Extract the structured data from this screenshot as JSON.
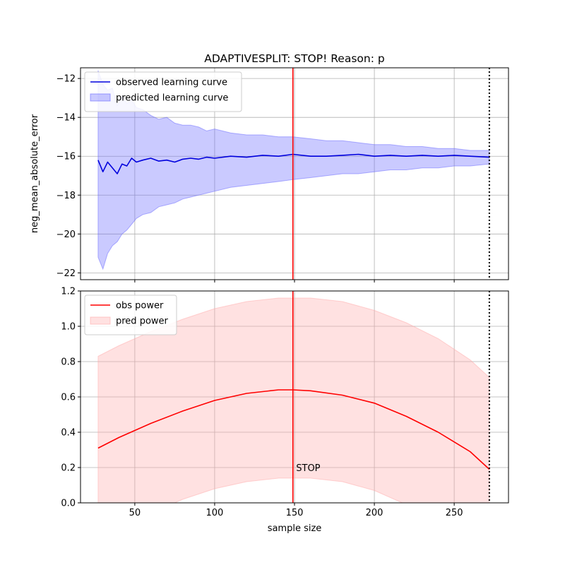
{
  "chart_data": [
    {
      "type": "line",
      "title": "ADAPTIVESPLIT: STOP!  Reason: p",
      "xlabel": "",
      "ylabel": "neg_mean_absolute_error",
      "xlim": [
        16,
        284
      ],
      "ylim": [
        -22.35,
        -11.45
      ],
      "xticks": [
        50,
        100,
        150,
        200,
        250
      ],
      "yticks": [
        -22,
        -20,
        -18,
        -16,
        -14,
        -12
      ],
      "ytick_labels": [
        "−22",
        "−20",
        "−18",
        "−16",
        "−14",
        "−12"
      ],
      "grid": true,
      "legend": "top-left",
      "series": [
        {
          "name": "observed learning curve",
          "color": "#0000dd",
          "x": [
            27,
            30,
            33,
            36,
            39,
            42,
            45,
            48,
            51,
            55,
            60,
            65,
            70,
            75,
            80,
            85,
            90,
            95,
            100,
            110,
            120,
            130,
            140,
            149,
            160,
            170,
            180,
            190,
            200,
            210,
            220,
            230,
            240,
            250,
            260,
            272
          ],
          "y": [
            -16.2,
            -16.8,
            -16.3,
            -16.6,
            -16.9,
            -16.4,
            -16.5,
            -16.1,
            -16.3,
            -16.2,
            -16.1,
            -16.25,
            -16.2,
            -16.3,
            -16.15,
            -16.1,
            -16.15,
            -16.05,
            -16.1,
            -16.0,
            -16.05,
            -15.95,
            -16.0,
            -15.9,
            -16.0,
            -16.0,
            -15.95,
            -15.9,
            -16.0,
            -15.95,
            -16.0,
            -15.95,
            -16.0,
            -15.95,
            -16.0,
            -16.05
          ]
        },
        {
          "name": "predicted learning curve",
          "type": "area",
          "color": "#6666ff",
          "x": [
            27,
            30,
            33,
            36,
            39,
            42,
            45,
            48,
            51,
            55,
            60,
            65,
            70,
            75,
            80,
            85,
            90,
            95,
            100,
            110,
            120,
            130,
            140,
            149,
            160,
            170,
            180,
            190,
            200,
            210,
            220,
            230,
            240,
            250,
            260,
            272
          ],
          "upper": [
            -11.6,
            -12.3,
            -12.6,
            -12.5,
            -13.4,
            -12.9,
            -13.3,
            -13.1,
            -13.5,
            -13.6,
            -13.9,
            -14.1,
            -14.0,
            -14.3,
            -14.4,
            -14.4,
            -14.5,
            -14.7,
            -14.6,
            -14.8,
            -14.9,
            -14.9,
            -15.0,
            -15.0,
            -15.1,
            -15.2,
            -15.2,
            -15.3,
            -15.4,
            -15.4,
            -15.5,
            -15.5,
            -15.6,
            -15.6,
            -15.7,
            -15.7
          ],
          "lower": [
            -21.2,
            -21.8,
            -21.0,
            -20.6,
            -20.4,
            -20.0,
            -19.8,
            -19.5,
            -19.2,
            -19.0,
            -18.9,
            -18.6,
            -18.5,
            -18.4,
            -18.2,
            -18.1,
            -18.0,
            -17.9,
            -17.8,
            -17.6,
            -17.5,
            -17.4,
            -17.3,
            -17.2,
            -17.1,
            -17.0,
            -16.9,
            -16.9,
            -16.8,
            -16.7,
            -16.7,
            -16.6,
            -16.6,
            -16.5,
            -16.5,
            -16.4
          ]
        }
      ],
      "vlines": [
        {
          "x": 149,
          "color": "#ff0000",
          "style": "solid"
        },
        {
          "x": 272,
          "color": "#000000",
          "style": "dotted"
        }
      ]
    },
    {
      "type": "line",
      "title": "",
      "xlabel": "sample size",
      "ylabel": "",
      "xlim": [
        16,
        284
      ],
      "ylim": [
        0.0,
        1.2
      ],
      "xticks": [
        50,
        100,
        150,
        200,
        250
      ],
      "yticks": [
        0.0,
        0.2,
        0.4,
        0.6,
        0.8,
        1.0,
        1.2
      ],
      "ytick_labels": [
        "0.0",
        "0.2",
        "0.4",
        "0.6",
        "0.8",
        "1.0",
        "1.2"
      ],
      "grid": true,
      "legend": "top-left",
      "series": [
        {
          "name": "obs power",
          "color": "#ff0000",
          "x": [
            27,
            40,
            60,
            80,
            100,
            120,
            140,
            149,
            160,
            180,
            200,
            220,
            240,
            260,
            272
          ],
          "y": [
            0.31,
            0.37,
            0.45,
            0.52,
            0.58,
            0.62,
            0.64,
            0.64,
            0.635,
            0.61,
            0.565,
            0.49,
            0.4,
            0.29,
            0.19
          ]
        },
        {
          "name": "pred power",
          "type": "area",
          "color": "#ffaaaa",
          "x": [
            27,
            40,
            60,
            80,
            100,
            120,
            140,
            149,
            160,
            180,
            200,
            220,
            240,
            260,
            272
          ],
          "upper": [
            0.83,
            0.89,
            0.97,
            1.04,
            1.1,
            1.14,
            1.16,
            1.16,
            1.16,
            1.14,
            1.09,
            1.02,
            0.93,
            0.81,
            0.71
          ],
          "lower": [
            -0.21,
            -0.14,
            -0.06,
            0.02,
            0.08,
            0.12,
            0.14,
            0.14,
            0.14,
            0.12,
            0.07,
            -0.01,
            -0.11,
            -0.23,
            -0.31
          ]
        }
      ],
      "vlines": [
        {
          "x": 149,
          "color": "#ff0000",
          "style": "solid"
        },
        {
          "x": 272,
          "color": "#000000",
          "style": "dotted"
        }
      ],
      "annotations": [
        {
          "text": "STOP",
          "x": 151,
          "y": 0.18
        }
      ]
    }
  ]
}
